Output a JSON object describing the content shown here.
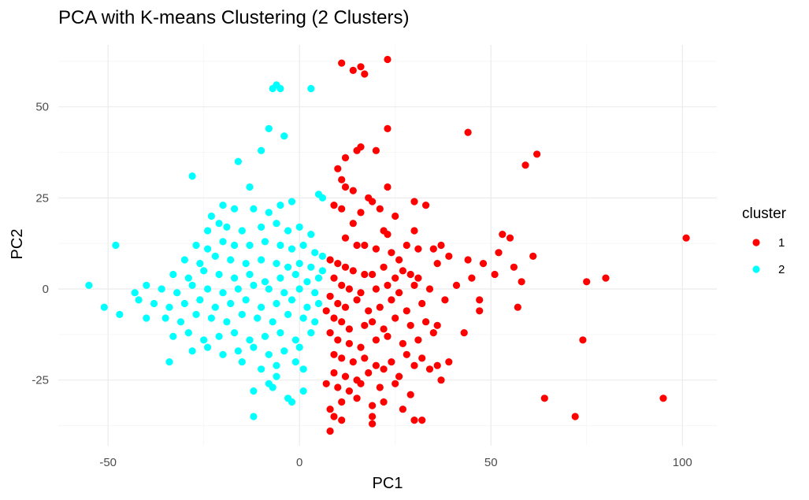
{
  "chart_data": {
    "type": "scatter",
    "title": "PCA with K-means Clustering (2 Clusters)",
    "xlabel": "PC1",
    "ylabel": "PC2",
    "xlim": [
      -63,
      109
    ],
    "ylim": [
      -43,
      67
    ],
    "x_ticks": [
      -50,
      0,
      50,
      100
    ],
    "y_ticks": [
      -25,
      0,
      25,
      50
    ],
    "x_tick_labels": [
      "-50",
      "0",
      "50",
      "100"
    ],
    "y_tick_labels": [
      "-25",
      "0",
      "25",
      "50"
    ],
    "grid": true,
    "legend": {
      "title": "cluster",
      "position": "right"
    },
    "series": [
      {
        "name": "1",
        "color": "#FF0000",
        "points": [
          [
            11,
            62
          ],
          [
            14,
            60
          ],
          [
            16,
            61
          ],
          [
            17,
            59
          ],
          [
            23,
            63
          ],
          [
            44,
            43
          ],
          [
            23,
            44
          ],
          [
            15,
            38
          ],
          [
            16,
            39
          ],
          [
            20,
            38
          ],
          [
            12,
            36
          ],
          [
            62,
            37
          ],
          [
            59,
            34
          ],
          [
            10,
            33
          ],
          [
            11,
            30
          ],
          [
            12,
            28
          ],
          [
            14,
            27
          ],
          [
            18,
            25
          ],
          [
            23,
            28
          ],
          [
            19,
            24
          ],
          [
            30,
            24
          ],
          [
            33,
            23
          ],
          [
            9,
            23
          ],
          [
            11,
            22
          ],
          [
            16,
            21
          ],
          [
            21,
            22
          ],
          [
            25,
            20
          ],
          [
            14,
            18
          ],
          [
            22,
            16
          ],
          [
            23,
            15
          ],
          [
            30,
            16
          ],
          [
            28,
            12
          ],
          [
            12,
            14
          ],
          [
            15,
            12
          ],
          [
            17,
            12
          ],
          [
            20,
            11
          ],
          [
            24,
            10
          ],
          [
            26,
            8
          ],
          [
            31,
            11
          ],
          [
            35,
            11
          ],
          [
            37,
            12
          ],
          [
            39,
            9
          ],
          [
            36,
            7
          ],
          [
            53,
            15
          ],
          [
            55,
            14
          ],
          [
            52,
            10
          ],
          [
            56,
            6
          ],
          [
            61,
            9
          ],
          [
            44,
            8
          ],
          [
            48,
            7
          ],
          [
            45,
            3
          ],
          [
            41,
            1
          ],
          [
            51,
            4
          ],
          [
            58,
            2
          ],
          [
            8,
            8
          ],
          [
            10,
            7
          ],
          [
            12,
            6
          ],
          [
            14,
            5
          ],
          [
            17,
            4
          ],
          [
            19,
            4
          ],
          [
            22,
            6
          ],
          [
            25,
            3
          ],
          [
            27,
            5
          ],
          [
            29,
            4
          ],
          [
            31,
            3
          ],
          [
            9,
            3
          ],
          [
            11,
            1
          ],
          [
            13,
            0
          ],
          [
            16,
            -1
          ],
          [
            20,
            0
          ],
          [
            23,
            1
          ],
          [
            26,
            -1
          ],
          [
            30,
            1
          ],
          [
            34,
            0
          ],
          [
            8,
            -2
          ],
          [
            10,
            -4
          ],
          [
            12,
            -5
          ],
          [
            15,
            -3
          ],
          [
            18,
            -6
          ],
          [
            21,
            -5
          ],
          [
            24,
            -3
          ],
          [
            28,
            -6
          ],
          [
            32,
            -4
          ],
          [
            38,
            -3
          ],
          [
            7,
            -6
          ],
          [
            9,
            -8
          ],
          [
            11,
            -9
          ],
          [
            13,
            -11
          ],
          [
            17,
            -10
          ],
          [
            19,
            -9
          ],
          [
            22,
            -11
          ],
          [
            25,
            -8
          ],
          [
            29,
            -10
          ],
          [
            33,
            -9
          ],
          [
            36,
            -10
          ],
          [
            8,
            -12
          ],
          [
            10,
            -14
          ],
          [
            13,
            -15
          ],
          [
            16,
            -16
          ],
          [
            20,
            -14
          ],
          [
            23,
            -13
          ],
          [
            27,
            -15
          ],
          [
            31,
            -14
          ],
          [
            35,
            -12
          ],
          [
            43,
            -12
          ],
          [
            9,
            -18
          ],
          [
            11,
            -19
          ],
          [
            14,
            -20
          ],
          [
            17,
            -19
          ],
          [
            20,
            -21
          ],
          [
            24,
            -20
          ],
          [
            28,
            -18
          ],
          [
            32,
            -19
          ],
          [
            36,
            -21
          ],
          [
            39,
            -20
          ],
          [
            9,
            -23
          ],
          [
            12,
            -24
          ],
          [
            15,
            -25
          ],
          [
            18,
            -23
          ],
          [
            22,
            -22
          ],
          [
            26,
            -24
          ],
          [
            30,
            -21
          ],
          [
            34,
            -22
          ],
          [
            7,
            -26
          ],
          [
            10,
            -27
          ],
          [
            13,
            -28
          ],
          [
            16,
            -26
          ],
          [
            21,
            -27
          ],
          [
            25,
            -26
          ],
          [
            29,
            -29
          ],
          [
            37,
            -25
          ],
          [
            8,
            -33
          ],
          [
            11,
            -31
          ],
          [
            15,
            -30
          ],
          [
            19,
            -32
          ],
          [
            22,
            -31
          ],
          [
            27,
            -33
          ],
          [
            9,
            -35
          ],
          [
            11,
            -36
          ],
          [
            19,
            -35
          ],
          [
            19,
            -37
          ],
          [
            30,
            -36
          ],
          [
            32,
            -36
          ],
          [
            8,
            -39
          ],
          [
            47,
            -3
          ],
          [
            47,
            -6
          ],
          [
            57,
            -5
          ],
          [
            75,
            2
          ],
          [
            80,
            3
          ],
          [
            74,
            -14
          ],
          [
            101,
            14
          ],
          [
            95,
            -30
          ],
          [
            64,
            -30
          ],
          [
            72,
            -35
          ]
        ]
      },
      {
        "name": "2",
        "color": "#00FFFF",
        "points": [
          [
            -7,
            55
          ],
          [
            -6,
            56
          ],
          [
            -5,
            55
          ],
          [
            3,
            55
          ],
          [
            -8,
            44
          ],
          [
            -4,
            42
          ],
          [
            -10,
            38
          ],
          [
            -28,
            31
          ],
          [
            -16,
            35
          ],
          [
            -13,
            28
          ],
          [
            -23,
            20
          ],
          [
            -20,
            23
          ],
          [
            -17,
            22
          ],
          [
            -12,
            22
          ],
          [
            -8,
            21
          ],
          [
            -5,
            23
          ],
          [
            -2,
            24
          ],
          [
            5,
            26
          ],
          [
            6,
            25
          ],
          [
            -24,
            16
          ],
          [
            -21,
            18
          ],
          [
            -19,
            17
          ],
          [
            -15,
            16
          ],
          [
            -10,
            17
          ],
          [
            -6,
            18
          ],
          [
            -3,
            16
          ],
          [
            0,
            17
          ],
          [
            3,
            15
          ],
          [
            -27,
            12
          ],
          [
            -24,
            11
          ],
          [
            -20,
            13
          ],
          [
            -17,
            12
          ],
          [
            -13,
            12
          ],
          [
            -9,
            13
          ],
          [
            -5,
            12
          ],
          [
            -2,
            11
          ],
          [
            1,
            12
          ],
          [
            4,
            10
          ],
          [
            6,
            9
          ],
          [
            -30,
            8
          ],
          [
            -26,
            7
          ],
          [
            -22,
            9
          ],
          [
            -18,
            8
          ],
          [
            -14,
            7
          ],
          [
            -10,
            8
          ],
          [
            -6,
            7
          ],
          [
            -3,
            6
          ],
          [
            0,
            7
          ],
          [
            3,
            6
          ],
          [
            6,
            5
          ],
          [
            -33,
            4
          ],
          [
            -29,
            3
          ],
          [
            -25,
            5
          ],
          [
            -21,
            4
          ],
          [
            -17,
            3
          ],
          [
            -13,
            4
          ],
          [
            -9,
            2
          ],
          [
            -5,
            3
          ],
          [
            -1,
            4
          ],
          [
            2,
            2
          ],
          [
            5,
            3
          ],
          [
            -40,
            1
          ],
          [
            -36,
            0
          ],
          [
            -32,
            -1
          ],
          [
            -28,
            1
          ],
          [
            -24,
            0
          ],
          [
            -20,
            -1
          ],
          [
            -16,
            0
          ],
          [
            -12,
            1
          ],
          [
            -8,
            0
          ],
          [
            -4,
            -1
          ],
          [
            0,
            0
          ],
          [
            4,
            -1
          ],
          [
            -42,
            -3
          ],
          [
            -38,
            -4
          ],
          [
            -34,
            -5
          ],
          [
            -30,
            -4
          ],
          [
            -26,
            -3
          ],
          [
            -22,
            -5
          ],
          [
            -18,
            -4
          ],
          [
            -14,
            -3
          ],
          [
            -10,
            -5
          ],
          [
            -6,
            -4
          ],
          [
            -2,
            -3
          ],
          [
            2,
            -5
          ],
          [
            5,
            -4
          ],
          [
            -35,
            -8
          ],
          [
            -31,
            -9
          ],
          [
            -27,
            -7
          ],
          [
            -23,
            -8
          ],
          [
            -19,
            -9
          ],
          [
            -15,
            -7
          ],
          [
            -11,
            -8
          ],
          [
            -7,
            -9
          ],
          [
            -3,
            -7
          ],
          [
            1,
            -8
          ],
          [
            4,
            -9
          ],
          [
            -33,
            -13
          ],
          [
            -29,
            -12
          ],
          [
            -25,
            -14
          ],
          [
            -21,
            -13
          ],
          [
            -17,
            -12
          ],
          [
            -13,
            -14
          ],
          [
            -9,
            -13
          ],
          [
            -5,
            -12
          ],
          [
            -1,
            -14
          ],
          [
            3,
            -12
          ],
          [
            -28,
            -17
          ],
          [
            -24,
            -16
          ],
          [
            -20,
            -18
          ],
          [
            -16,
            -17
          ],
          [
            -12,
            -16
          ],
          [
            -8,
            -18
          ],
          [
            -4,
            -17
          ],
          [
            0,
            -16
          ],
          [
            -34,
            -20
          ],
          [
            -15,
            -20
          ],
          [
            -10,
            -22
          ],
          [
            -6,
            -21
          ],
          [
            -1,
            -20
          ],
          [
            1,
            -22
          ],
          [
            -8,
            -26
          ],
          [
            -6,
            -24
          ],
          [
            -12,
            -28
          ],
          [
            -7,
            -27
          ],
          [
            1,
            -28
          ],
          [
            -3,
            -30
          ],
          [
            -2,
            -31
          ],
          [
            -12,
            -35
          ],
          [
            -55,
            1
          ],
          [
            -51,
            -5
          ],
          [
            -48,
            12
          ],
          [
            -47,
            -7
          ],
          [
            -43,
            -1
          ],
          [
            -40,
            -8
          ]
        ]
      }
    ]
  }
}
